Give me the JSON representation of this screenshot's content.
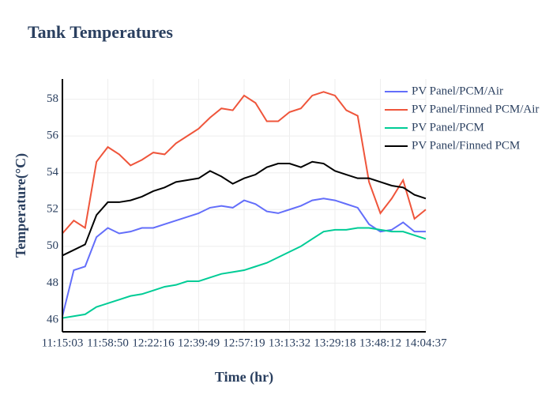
{
  "chart_data": {
    "type": "line",
    "title": "Tank Temperatures",
    "x_label": "Time (hr)",
    "y_label": "Temperature(°C)",
    "categories": [
      "11:15:03",
      null,
      null,
      null,
      "11:58:50",
      null,
      null,
      null,
      "12:22:16",
      null,
      null,
      null,
      "12:39:49",
      null,
      null,
      null,
      "12:57:19",
      null,
      null,
      null,
      "13:13:32",
      null,
      null,
      null,
      "13:29:18",
      null,
      null,
      null,
      "13:48:12",
      null,
      null,
      null,
      "14:04:37"
    ],
    "series": [
      {
        "name": "PV Panel/PCM/Air",
        "color": "#636efa",
        "values": [
          46.2,
          48.7,
          48.9,
          50.5,
          51.0,
          50.7,
          50.8,
          51.0,
          51.0,
          51.2,
          51.4,
          51.6,
          51.8,
          52.1,
          52.2,
          52.1,
          52.5,
          52.3,
          51.9,
          51.8,
          52.0,
          52.2,
          52.5,
          52.6,
          52.5,
          52.3,
          52.1,
          51.2,
          50.8,
          50.9,
          51.3,
          50.8,
          50.8
        ]
      },
      {
        "name": "PV Panel/Finned PCM/Air",
        "color": "#ef553b",
        "values": [
          50.7,
          51.4,
          51.0,
          54.6,
          55.4,
          55.0,
          54.4,
          54.7,
          55.1,
          55.0,
          55.6,
          56.0,
          56.4,
          57.0,
          57.5,
          57.4,
          58.2,
          57.8,
          56.8,
          56.8,
          57.3,
          57.5,
          58.2,
          58.4,
          58.2,
          57.4,
          57.1,
          53.5,
          51.8,
          52.6,
          53.6,
          51.5,
          52.0
        ]
      },
      {
        "name": "PV Panel/PCM",
        "color": "#00cc96",
        "values": [
          46.1,
          46.2,
          46.3,
          46.7,
          46.9,
          47.1,
          47.3,
          47.4,
          47.6,
          47.8,
          47.9,
          48.1,
          48.1,
          48.3,
          48.5,
          48.6,
          48.7,
          48.9,
          49.1,
          49.4,
          49.7,
          50.0,
          50.4,
          50.8,
          50.9,
          50.9,
          51.0,
          51.0,
          50.9,
          50.8,
          50.8,
          50.6,
          50.4
        ]
      },
      {
        "name": "PV Panel/Finned PCM",
        "color": "#000000",
        "values": [
          49.5,
          49.8,
          50.1,
          51.7,
          52.4,
          52.4,
          52.5,
          52.7,
          53.0,
          53.2,
          53.5,
          53.6,
          53.7,
          54.1,
          53.8,
          53.4,
          53.7,
          53.9,
          54.3,
          54.5,
          54.5,
          54.3,
          54.6,
          54.5,
          54.1,
          53.9,
          53.7,
          53.7,
          53.5,
          53.3,
          53.2,
          52.8,
          52.6
        ]
      }
    ],
    "ylim": [
      45.35,
      59.1
    ],
    "yticks": [
      46,
      48,
      50,
      52,
      54,
      56,
      58
    ],
    "grid": true,
    "legend": "top-right"
  }
}
